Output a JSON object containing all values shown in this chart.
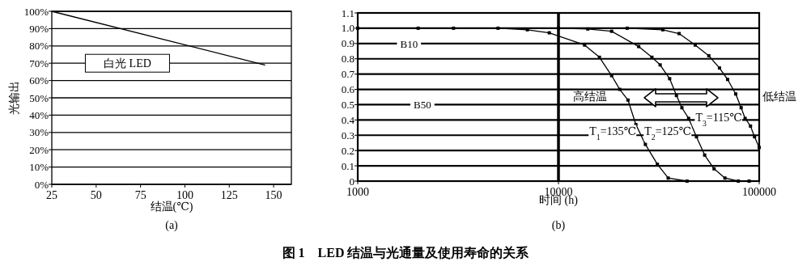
{
  "chart_data": [
    {
      "type": "line",
      "xlabel": "结温(℃)",
      "ylabel": "光输出",
      "xlim": [
        25,
        160
      ],
      "xticks": [
        25,
        50,
        75,
        100,
        125,
        150
      ],
      "ylim": [
        0,
        100
      ],
      "yticks": [
        {
          "value": 0,
          "label": "0%"
        },
        {
          "value": 10,
          "label": "10%"
        },
        {
          "value": 20,
          "label": "20%"
        },
        {
          "value": 30,
          "label": "30%"
        },
        {
          "value": 40,
          "label": "40%"
        },
        {
          "value": 50,
          "label": "50%"
        },
        {
          "value": 60,
          "label": "60%"
        },
        {
          "value": 70,
          "label": "70%"
        },
        {
          "value": 80,
          "label": "80%"
        },
        {
          "value": 90,
          "label": "90%"
        },
        {
          "value": 100,
          "label": "100%"
        }
      ],
      "grid": "y",
      "marker": "none",
      "line_style": "solid",
      "x": [
        25,
        145
      ],
      "series": [
        {
          "color": "#000000",
          "values": [
            100,
            69
          ]
        }
      ],
      "annotations": [
        "白光 LED",
        "(a)"
      ]
    },
    {
      "type": "line",
      "xlabel": "时间 (h)",
      "log": "x",
      "xlim": [
        1000,
        100000
      ],
      "xticks": [
        1000,
        10000,
        100000
      ],
      "ylim": [
        0,
        1.1
      ],
      "yticks": [
        0,
        0.1,
        0.2,
        0.3,
        0.4,
        0.5,
        0.6,
        0.7,
        0.8,
        0.9,
        {
          "value": 1,
          "label": "1.0"
        },
        1.1
      ],
      "grid": "y",
      "marker": "square",
      "line_style": "solid",
      "series": [
        {
          "name": "T$_{1}$=135℃",
          "color": "#000000",
          "x": [
            1000,
            2000,
            3000,
            5000,
            7000,
            9000,
            13500,
            16000,
            18400,
            20200,
            22200,
            24300,
            27100,
            31100,
            35200,
            43700
          ],
          "values": [
            1,
            1,
            1,
            1,
            0.99,
            0.97,
            0.89,
            0.81,
            0.69,
            0.6,
            0.53,
            0.37,
            0.24,
            0.11,
            0.02,
            0
          ]
        },
        {
          "name": "T$_{2}$=125℃",
          "color": "#000000",
          "x": [
            10000,
            14000,
            18400,
            25100,
            29200,
            32100,
            35800,
            38700,
            41200,
            44500,
            48700,
            53500,
            59600,
            67500,
            78700,
            89100
          ],
          "values": [
            1,
            0.995,
            0.98,
            0.88,
            0.81,
            0.76,
            0.67,
            0.56,
            0.48,
            0.41,
            0.29,
            0.17,
            0.08,
            0.02,
            0,
            0
          ]
        },
        {
          "name": "T$_{3}$=115℃",
          "color": "#000000",
          "x": [
            22000,
            33100,
            39900,
            48000,
            56100,
            63400,
            69600,
            76400,
            81300,
            85100,
            90500,
            94800,
            100000
          ],
          "values": [
            1,
            0.99,
            0.965,
            0.89,
            0.82,
            0.74,
            0.665,
            0.57,
            0.48,
            0.41,
            0.36,
            0.29,
            0.22
          ]
        }
      ],
      "ref_lines": [
        {
          "axis": "x",
          "value": 10000
        }
      ],
      "annotations": [
        "高结温",
        "低结温",
        "(b)",
        "图 1　LED 结温与光通量及使用寿命的关系",
        {
          "text": "B10",
          "x": 1800,
          "y": 0.9
        },
        {
          "text": "B50",
          "x": 2100,
          "y": 0.5
        }
      ]
    }
  ]
}
